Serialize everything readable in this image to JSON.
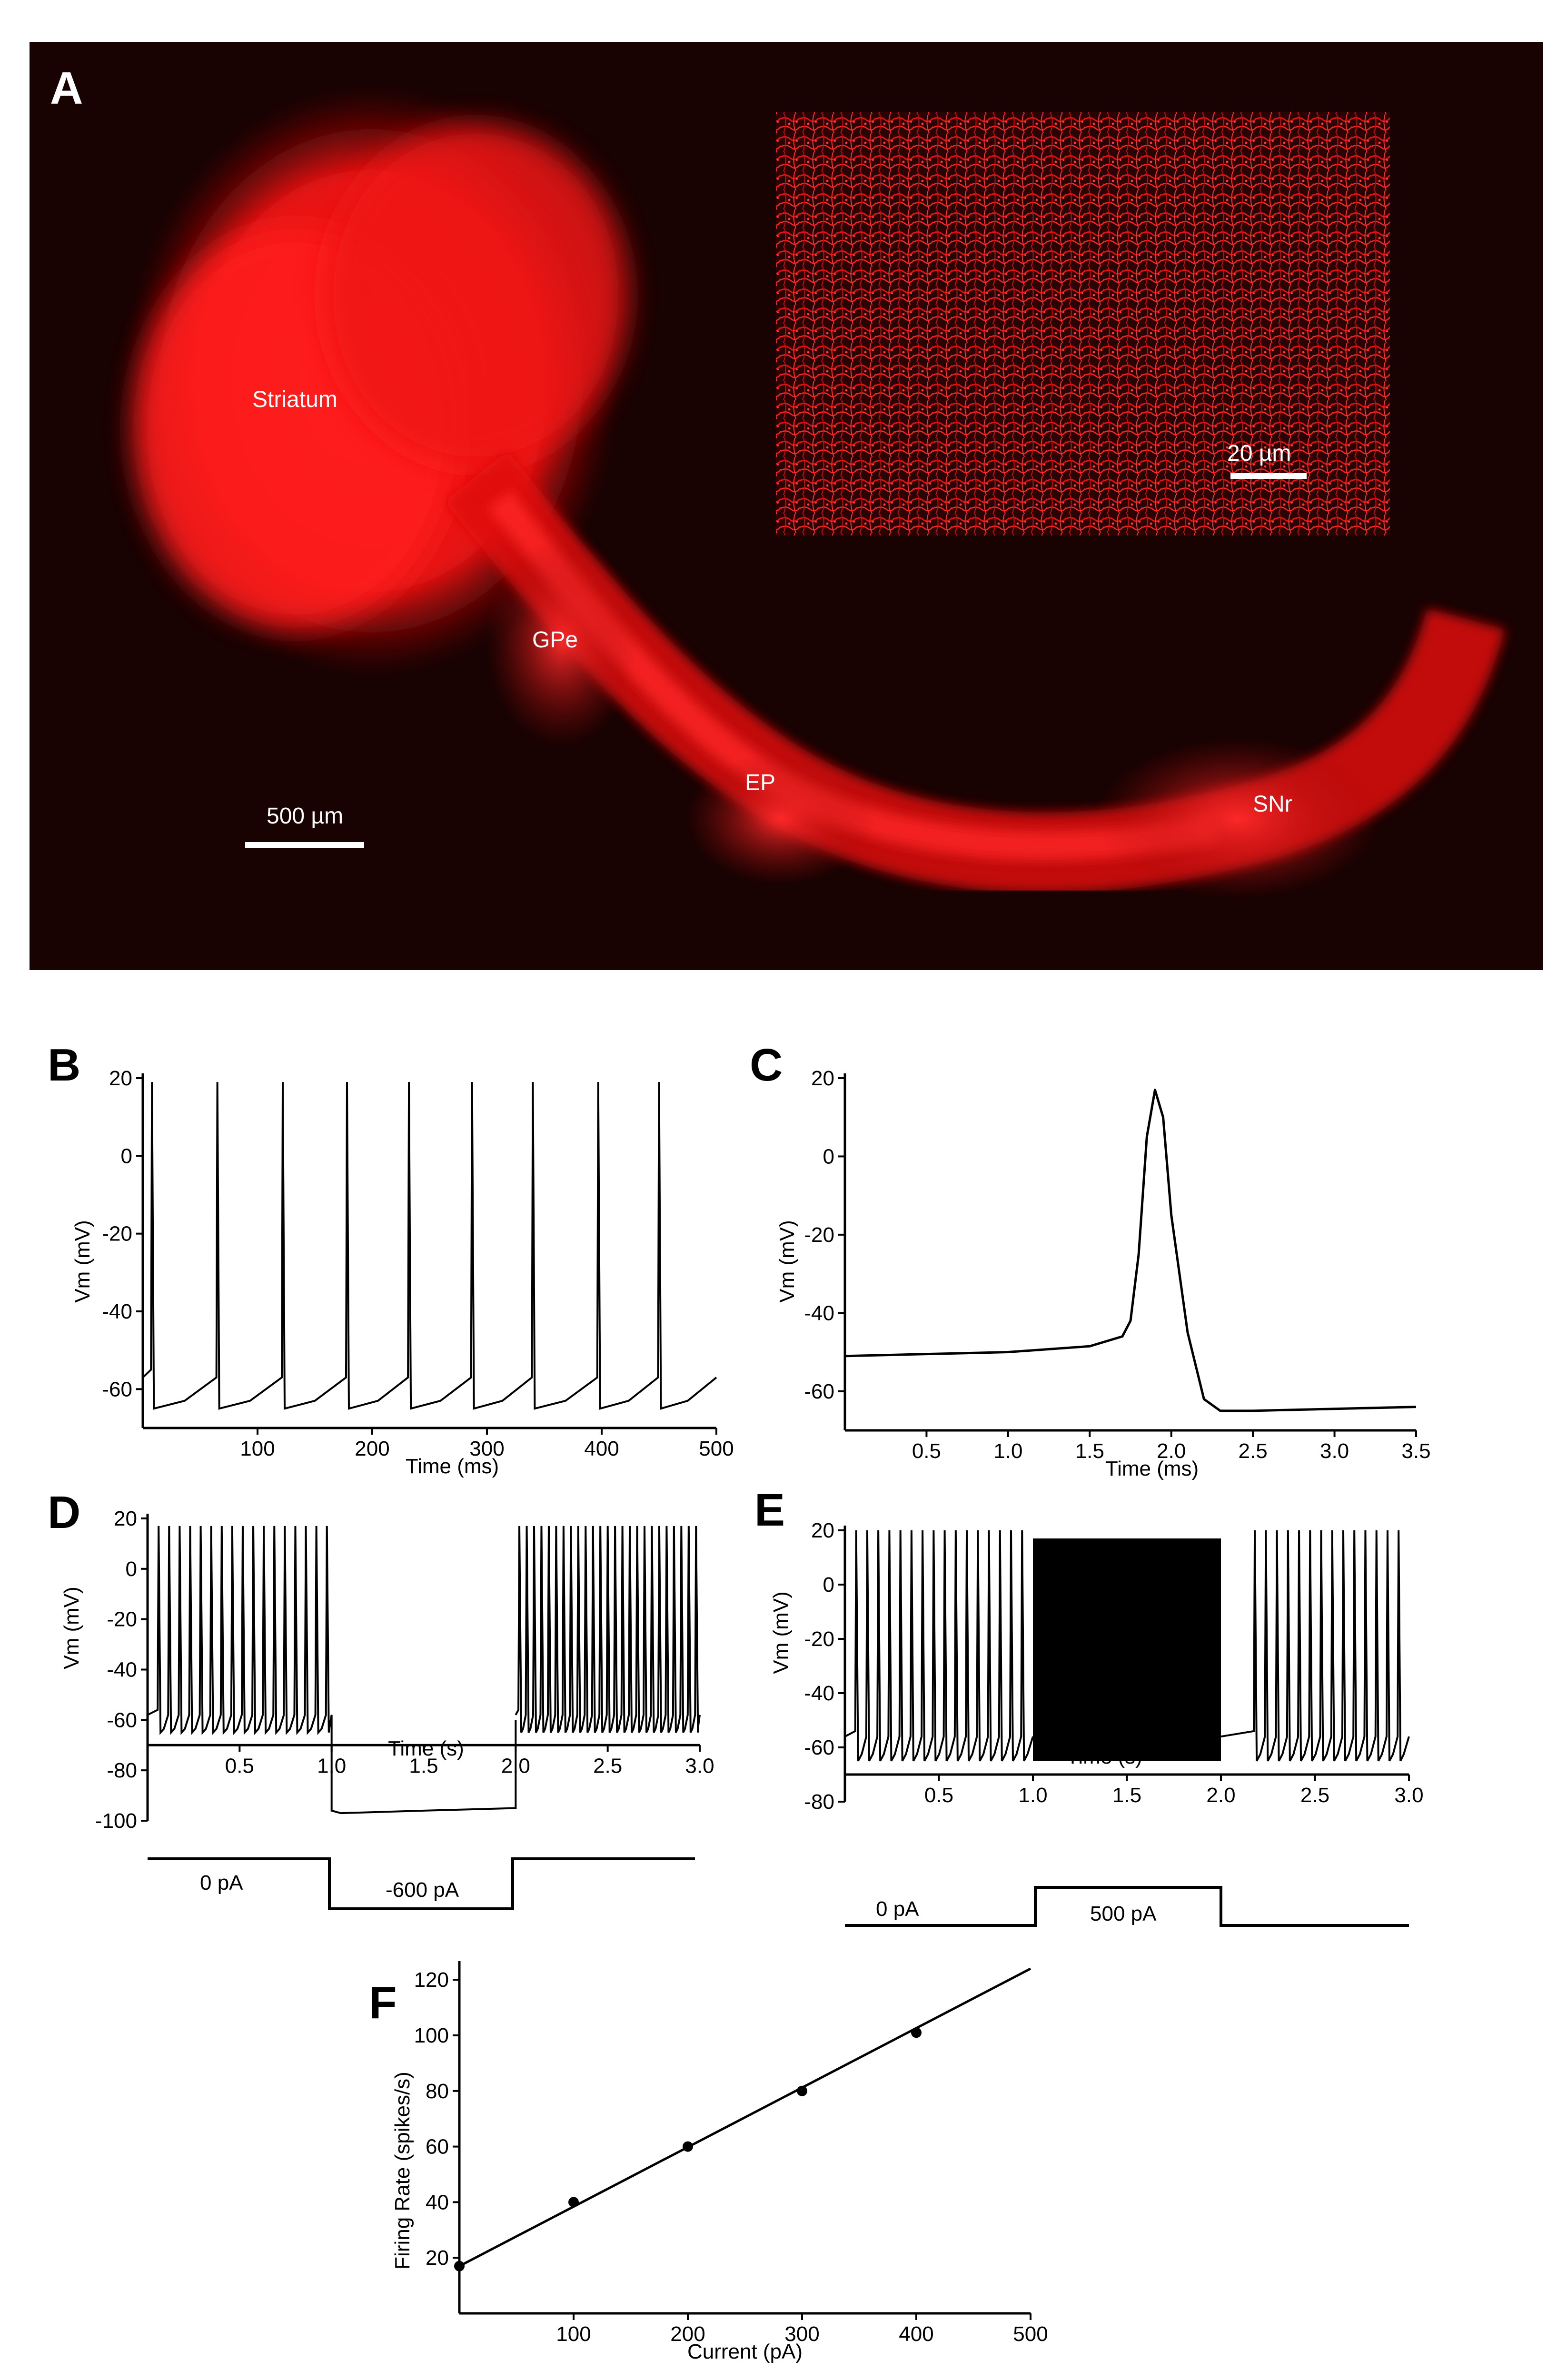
{
  "panel_A": {
    "letter": "A",
    "regions": [
      {
        "label": "Striatum"
      },
      {
        "label": "GPe"
      },
      {
        "label": "EP"
      },
      {
        "label": "SNr"
      }
    ],
    "scalebar_main": "500 µm",
    "scalebar_inset": "20 µm",
    "image_color": "#ff1a1a"
  },
  "chart_data": [
    {
      "panel": "B",
      "type": "line",
      "xlabel": "Time (ms)",
      "ylabel": "Vm (mV)",
      "xlim": [
        0,
        500
      ],
      "ylim": [
        -70,
        20
      ],
      "xticks": [
        100,
        200,
        300,
        400,
        500
      ],
      "yticks": [
        20,
        0,
        -20,
        -40,
        -60
      ],
      "spike_times_ms": [
        8,
        65,
        122,
        178,
        232,
        287,
        340,
        397,
        450
      ],
      "peak_mV": 19,
      "trough_mV": -65,
      "threshold_mV": -57
    },
    {
      "panel": "C",
      "type": "line",
      "xlabel": "Time (ms)",
      "ylabel": "Vm (mV)",
      "xlim": [
        0,
        3.5
      ],
      "ylim": [
        -70,
        20
      ],
      "xticks": [
        0.5,
        1.0,
        1.5,
        2.0,
        2.5,
        3.0,
        3.5
      ],
      "yticks": [
        20,
        0,
        -20,
        -40,
        -60
      ],
      "x": [
        0.0,
        0.5,
        1.0,
        1.5,
        1.7,
        1.75,
        1.8,
        1.85,
        1.9,
        1.95,
        2.0,
        2.1,
        2.2,
        2.3,
        2.5,
        3.0,
        3.5
      ],
      "y": [
        -51,
        -50.5,
        -50,
        -48.5,
        -46,
        -42,
        -25,
        5,
        17,
        10,
        -15,
        -45,
        -62,
        -65,
        -65,
        -64.5,
        -64
      ]
    },
    {
      "panel": "D",
      "type": "line",
      "xlabel": "Time (s)",
      "ylabel": "Vm (mV)",
      "xlim": [
        0,
        3.0
      ],
      "ylim": [
        -100,
        20
      ],
      "xticks": [
        0.5,
        1.0,
        1.5,
        2.0,
        2.5,
        3.0
      ],
      "yticks": [
        20,
        0,
        -20,
        -40,
        -60,
        -80,
        -100
      ],
      "step_start_s": 1.0,
      "step_end_s": 2.0,
      "spike_rate_hz": 17.5,
      "rebound_rate_hz": 25,
      "hyperpolarized_mV": -96,
      "current_labels": {
        "rest": "0 pA",
        "step": "-600 pA"
      }
    },
    {
      "panel": "E",
      "type": "line",
      "xlabel": "Time (s)",
      "ylabel": "Vm (mV)",
      "xlim": [
        0,
        3.0
      ],
      "ylim": [
        -80,
        20
      ],
      "xticks": [
        0.5,
        1.0,
        1.5,
        2.0,
        2.5,
        3.0
      ],
      "yticks": [
        20,
        0,
        -20,
        -40,
        -60,
        -80
      ],
      "step_start_s": 1.0,
      "step_end_s": 2.0,
      "spike_rate_hz": 17,
      "step_band_mV": [
        -65,
        14
      ],
      "current_labels": {
        "rest": "0 pA",
        "step": "500 pA"
      }
    },
    {
      "panel": "F",
      "type": "scatter",
      "xlabel": "Current (pA)",
      "ylabel": "Firing Rate (spikes/s)",
      "xlim": [
        0,
        500
      ],
      "ylim": [
        0,
        125
      ],
      "xticks": [
        100,
        200,
        300,
        400,
        500
      ],
      "yticks": [
        20,
        40,
        60,
        80,
        100,
        120
      ],
      "x": [
        0,
        100,
        200,
        300,
        400
      ],
      "y": [
        17,
        40,
        60,
        80,
        101
      ],
      "fit": {
        "x": [
          0,
          500
        ],
        "y": [
          17,
          124
        ]
      }
    }
  ]
}
